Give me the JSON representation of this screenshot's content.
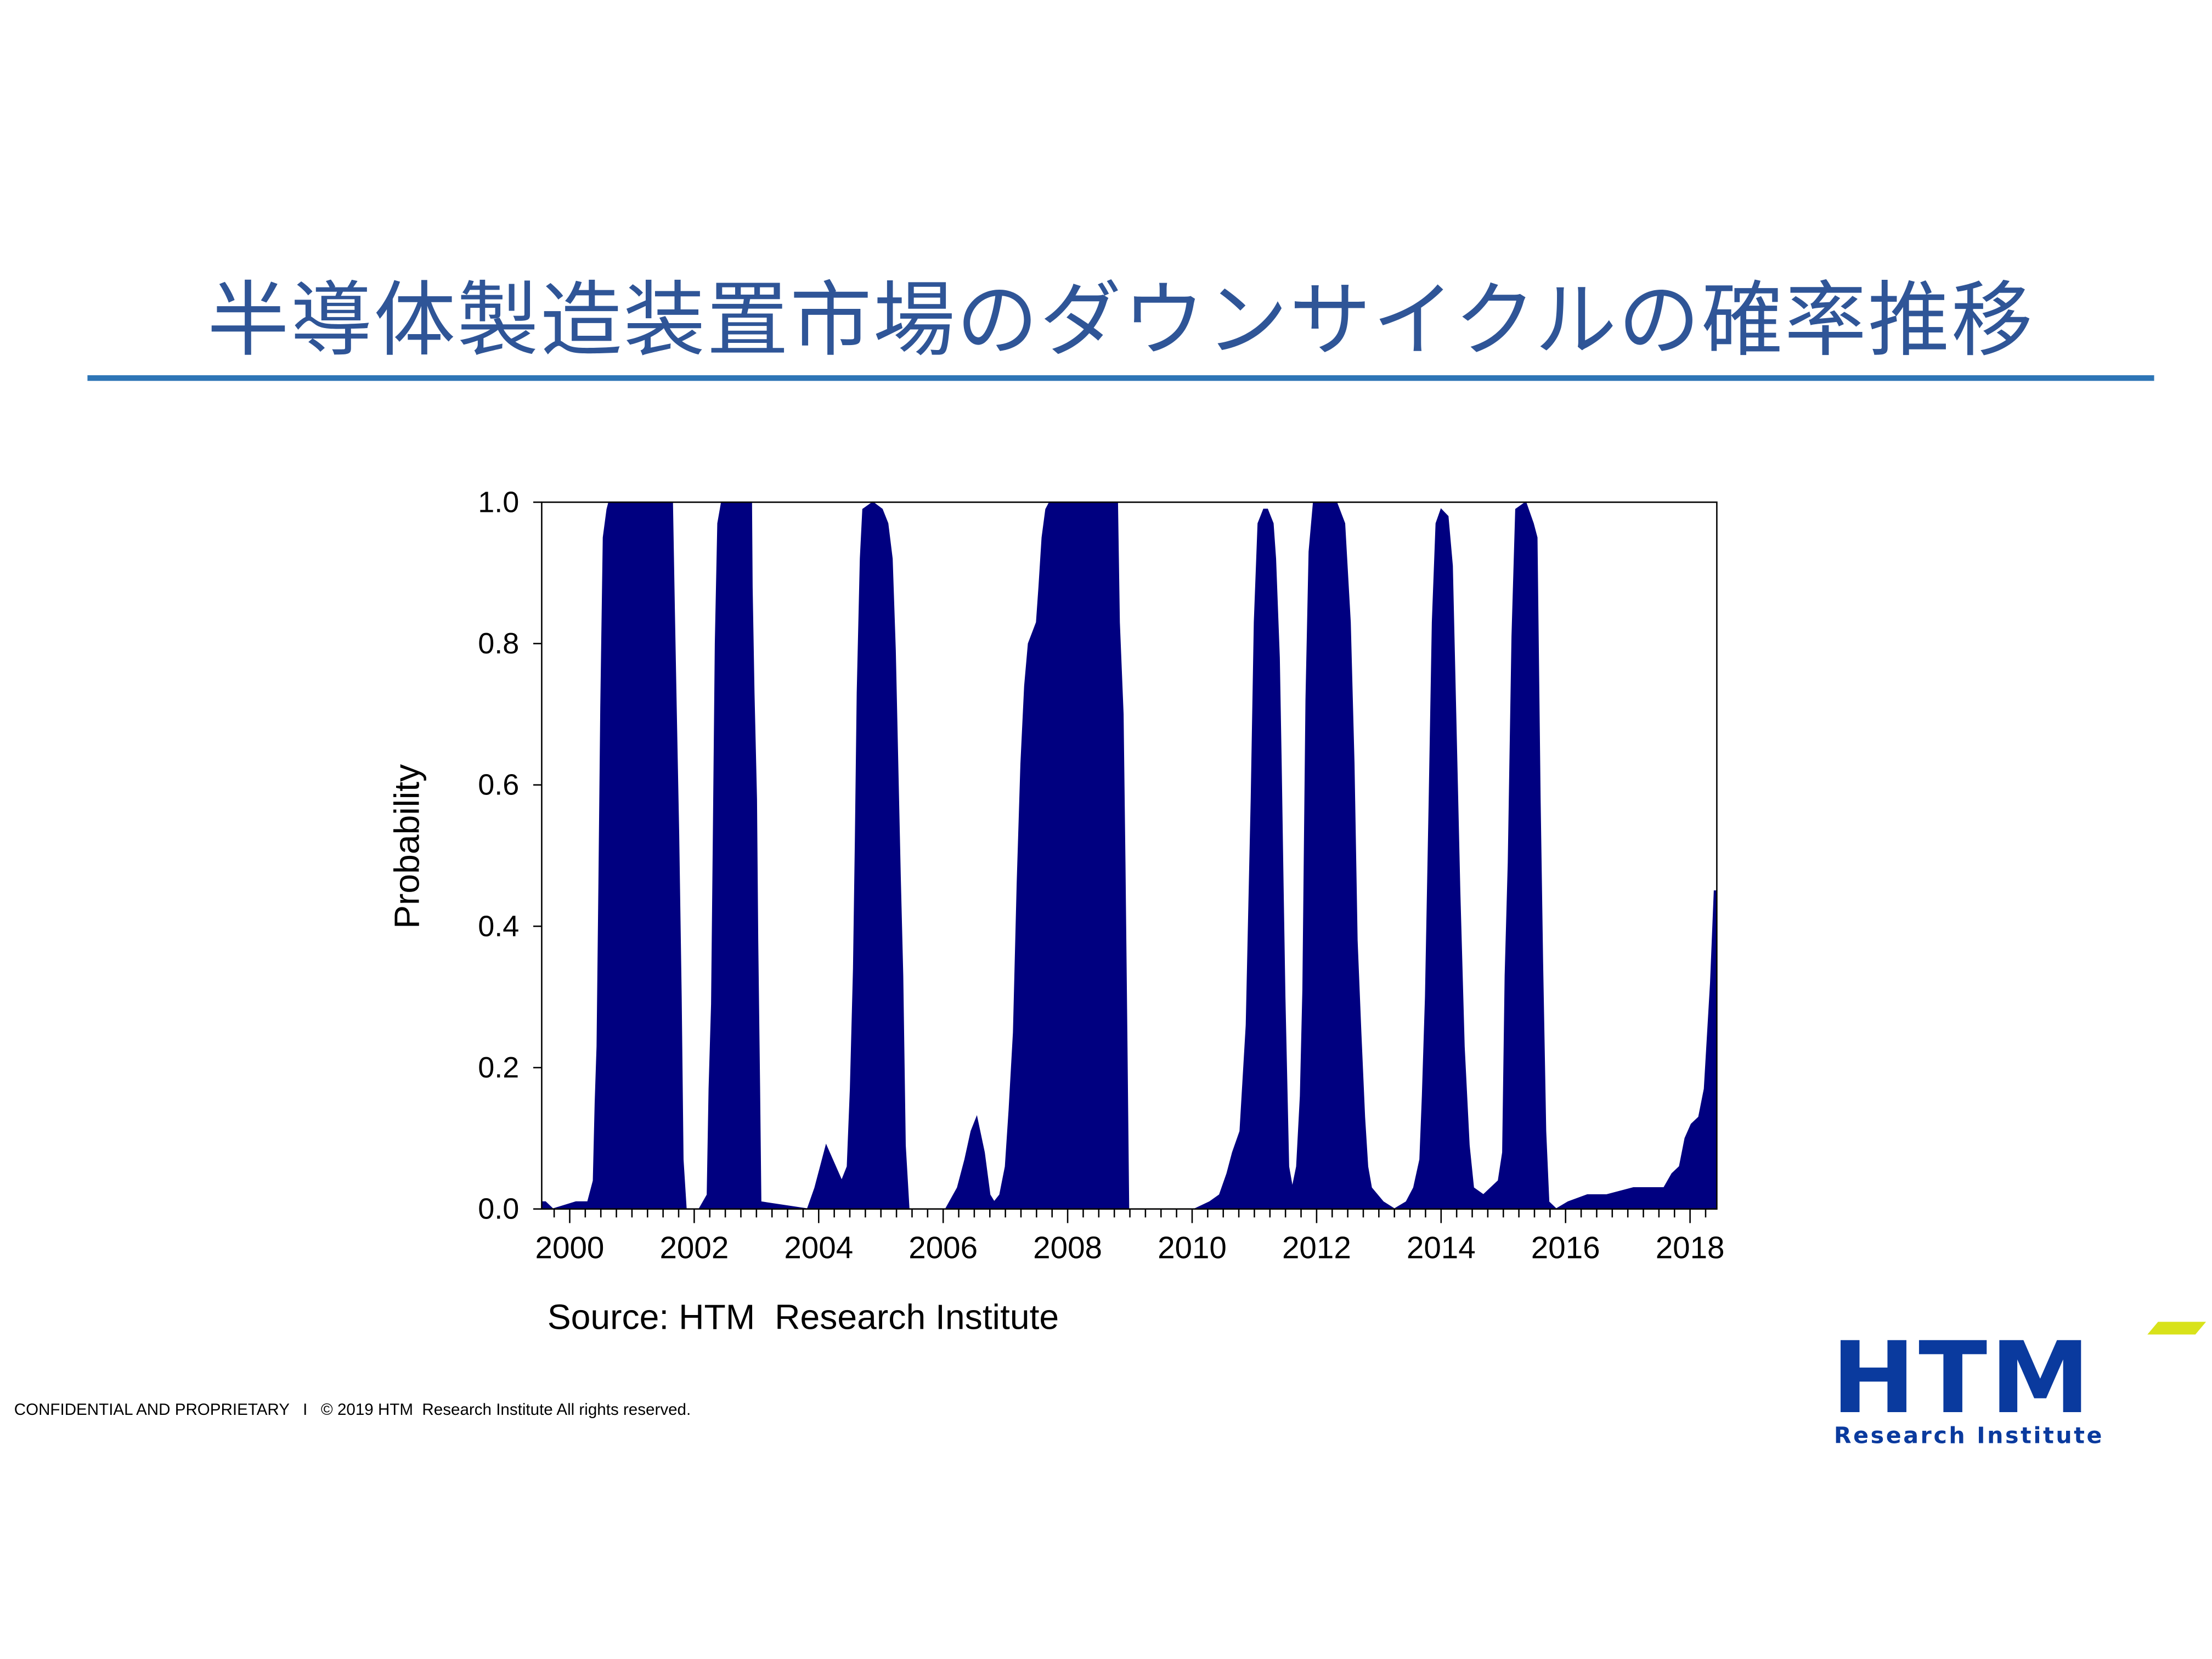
{
  "title": "半導体製造装置市場のダウンサイクルの確率推移",
  "source": "Source: HTM  Research Institute",
  "footer": "CONFIDENTIAL AND PROPRIETARY   I   © 2019 HTM  Research Institute All rights reserved.",
  "logo": {
    "main": "HTM",
    "sub": "Research Institute",
    "colors": {
      "blue": "#0a3a9e",
      "accent": "#d8e21a"
    }
  },
  "chart_data": {
    "type": "area",
    "title": "",
    "xlabel": "",
    "ylabel": "Probability",
    "xlim": [
      1999.55,
      2018.43
    ],
    "ylim": [
      0,
      1
    ],
    "yticks": [
      "0.0",
      "0.2",
      "0.4",
      "0.6",
      "0.8",
      "1.0"
    ],
    "xticks": [
      "2000",
      "2002",
      "2004",
      "2006",
      "2008",
      "2010",
      "2012",
      "2014",
      "2016",
      "2018"
    ],
    "grid": false,
    "fill_color": "#000080",
    "x": [
      1999.55,
      1999.61,
      1999.73,
      2000.1,
      2000.29,
      2000.38,
      2000.41,
      2000.44,
      2000.47,
      2000.5,
      2000.54,
      2000.6,
      2000.63,
      2001.65,
      2001.68,
      2001.71,
      2001.75,
      2001.79,
      2001.82,
      2001.87,
      2002.08,
      2002.21,
      2002.24,
      2002.28,
      2002.31,
      2002.34,
      2002.38,
      2002.44,
      2002.92,
      2002.93,
      2002.96,
      2003.0,
      2003.02,
      2003.05,
      2003.07,
      2003.82,
      2003.94,
      2004.03,
      2004.12,
      2004.22,
      2004.37,
      2004.46,
      2004.51,
      2004.56,
      2004.59,
      2004.62,
      2004.67,
      2004.71,
      2004.87,
      2005.02,
      2005.11,
      2005.18,
      2005.23,
      2005.27,
      2005.31,
      2005.35,
      2005.39,
      2005.45,
      2006.04,
      2006.23,
      2006.35,
      2006.45,
      2006.54,
      2006.66,
      2006.75,
      2006.82,
      2006.91,
      2007.0,
      2007.06,
      2007.13,
      2007.19,
      2007.25,
      2007.31,
      2007.37,
      2007.5,
      2007.54,
      2007.59,
      2007.65,
      2007.71,
      2008.8,
      2008.83,
      2008.89,
      2008.92,
      2008.95,
      2008.98,
      2010.04,
      2010.28,
      2010.44,
      2010.56,
      2010.65,
      2010.77,
      2010.81,
      2010.87,
      2010.91,
      2010.95,
      2011.0,
      2011.06,
      2011.15,
      2011.21,
      2011.3,
      2011.34,
      2011.4,
      2011.43,
      2011.46,
      2011.49,
      2011.55,
      2011.61,
      2011.68,
      2011.74,
      2011.78,
      2011.83,
      2011.88,
      2011.95,
      2012.32,
      2012.45,
      2012.54,
      2012.6,
      2012.65,
      2012.71,
      2012.77,
      2012.82,
      2012.88,
      2013.07,
      2013.25,
      2013.44,
      2013.56,
      2013.66,
      2013.7,
      2013.75,
      2013.81,
      2013.86,
      2013.92,
      2014.0,
      2014.11,
      2014.18,
      2014.24,
      2014.3,
      2014.37,
      2014.45,
      2014.52,
      2014.68,
      2014.8,
      2014.92,
      2014.99,
      2015.03,
      2015.08,
      2015.14,
      2015.2,
      2015.36,
      2015.48,
      2015.54,
      2015.59,
      2015.63,
      2015.68,
      2015.73,
      2015.85,
      2016.04,
      2016.35,
      2016.66,
      2017.09,
      2017.34,
      2017.58,
      2017.71,
      2017.83,
      2017.92,
      2018.02,
      2018.14,
      2018.23,
      2018.33,
      2018.39,
      2018.43
    ],
    "y": [
      0.01,
      0.01,
      0.0,
      0.01,
      0.01,
      0.04,
      0.15,
      0.23,
      0.46,
      0.71,
      0.95,
      0.99,
      1.0,
      1.0,
      0.85,
      0.71,
      0.53,
      0.3,
      0.07,
      0.0,
      0.0,
      0.02,
      0.17,
      0.29,
      0.54,
      0.8,
      0.97,
      1.0,
      1.0,
      0.88,
      0.73,
      0.58,
      0.38,
      0.17,
      0.01,
      0.0,
      0.03,
      0.06,
      0.09,
      0.07,
      0.04,
      0.06,
      0.17,
      0.34,
      0.52,
      0.73,
      0.92,
      0.99,
      1.0,
      0.99,
      0.97,
      0.92,
      0.79,
      0.63,
      0.47,
      0.33,
      0.09,
      0.0,
      0.0,
      0.03,
      0.07,
      0.11,
      0.13,
      0.08,
      0.02,
      0.01,
      0.02,
      0.06,
      0.14,
      0.25,
      0.46,
      0.63,
      0.74,
      0.8,
      0.83,
      0.88,
      0.95,
      0.99,
      1.0,
      1.0,
      0.83,
      0.7,
      0.49,
      0.25,
      0.0,
      0.0,
      0.01,
      0.02,
      0.05,
      0.08,
      0.11,
      0.17,
      0.26,
      0.42,
      0.58,
      0.83,
      0.97,
      0.99,
      0.99,
      0.97,
      0.92,
      0.78,
      0.63,
      0.46,
      0.3,
      0.06,
      0.03,
      0.06,
      0.16,
      0.31,
      0.72,
      0.93,
      1.0,
      1.0,
      0.97,
      0.83,
      0.63,
      0.38,
      0.25,
      0.13,
      0.06,
      0.03,
      0.01,
      0.0,
      0.01,
      0.03,
      0.07,
      0.16,
      0.3,
      0.58,
      0.83,
      0.97,
      0.99,
      0.98,
      0.91,
      0.68,
      0.45,
      0.23,
      0.09,
      0.03,
      0.02,
      0.03,
      0.04,
      0.08,
      0.33,
      0.49,
      0.81,
      0.99,
      1.0,
      0.97,
      0.95,
      0.58,
      0.35,
      0.11,
      0.01,
      0.0,
      0.01,
      0.02,
      0.02,
      0.03,
      0.03,
      0.03,
      0.05,
      0.06,
      0.1,
      0.12,
      0.13,
      0.17,
      0.32,
      0.45,
      0.45
    ]
  }
}
